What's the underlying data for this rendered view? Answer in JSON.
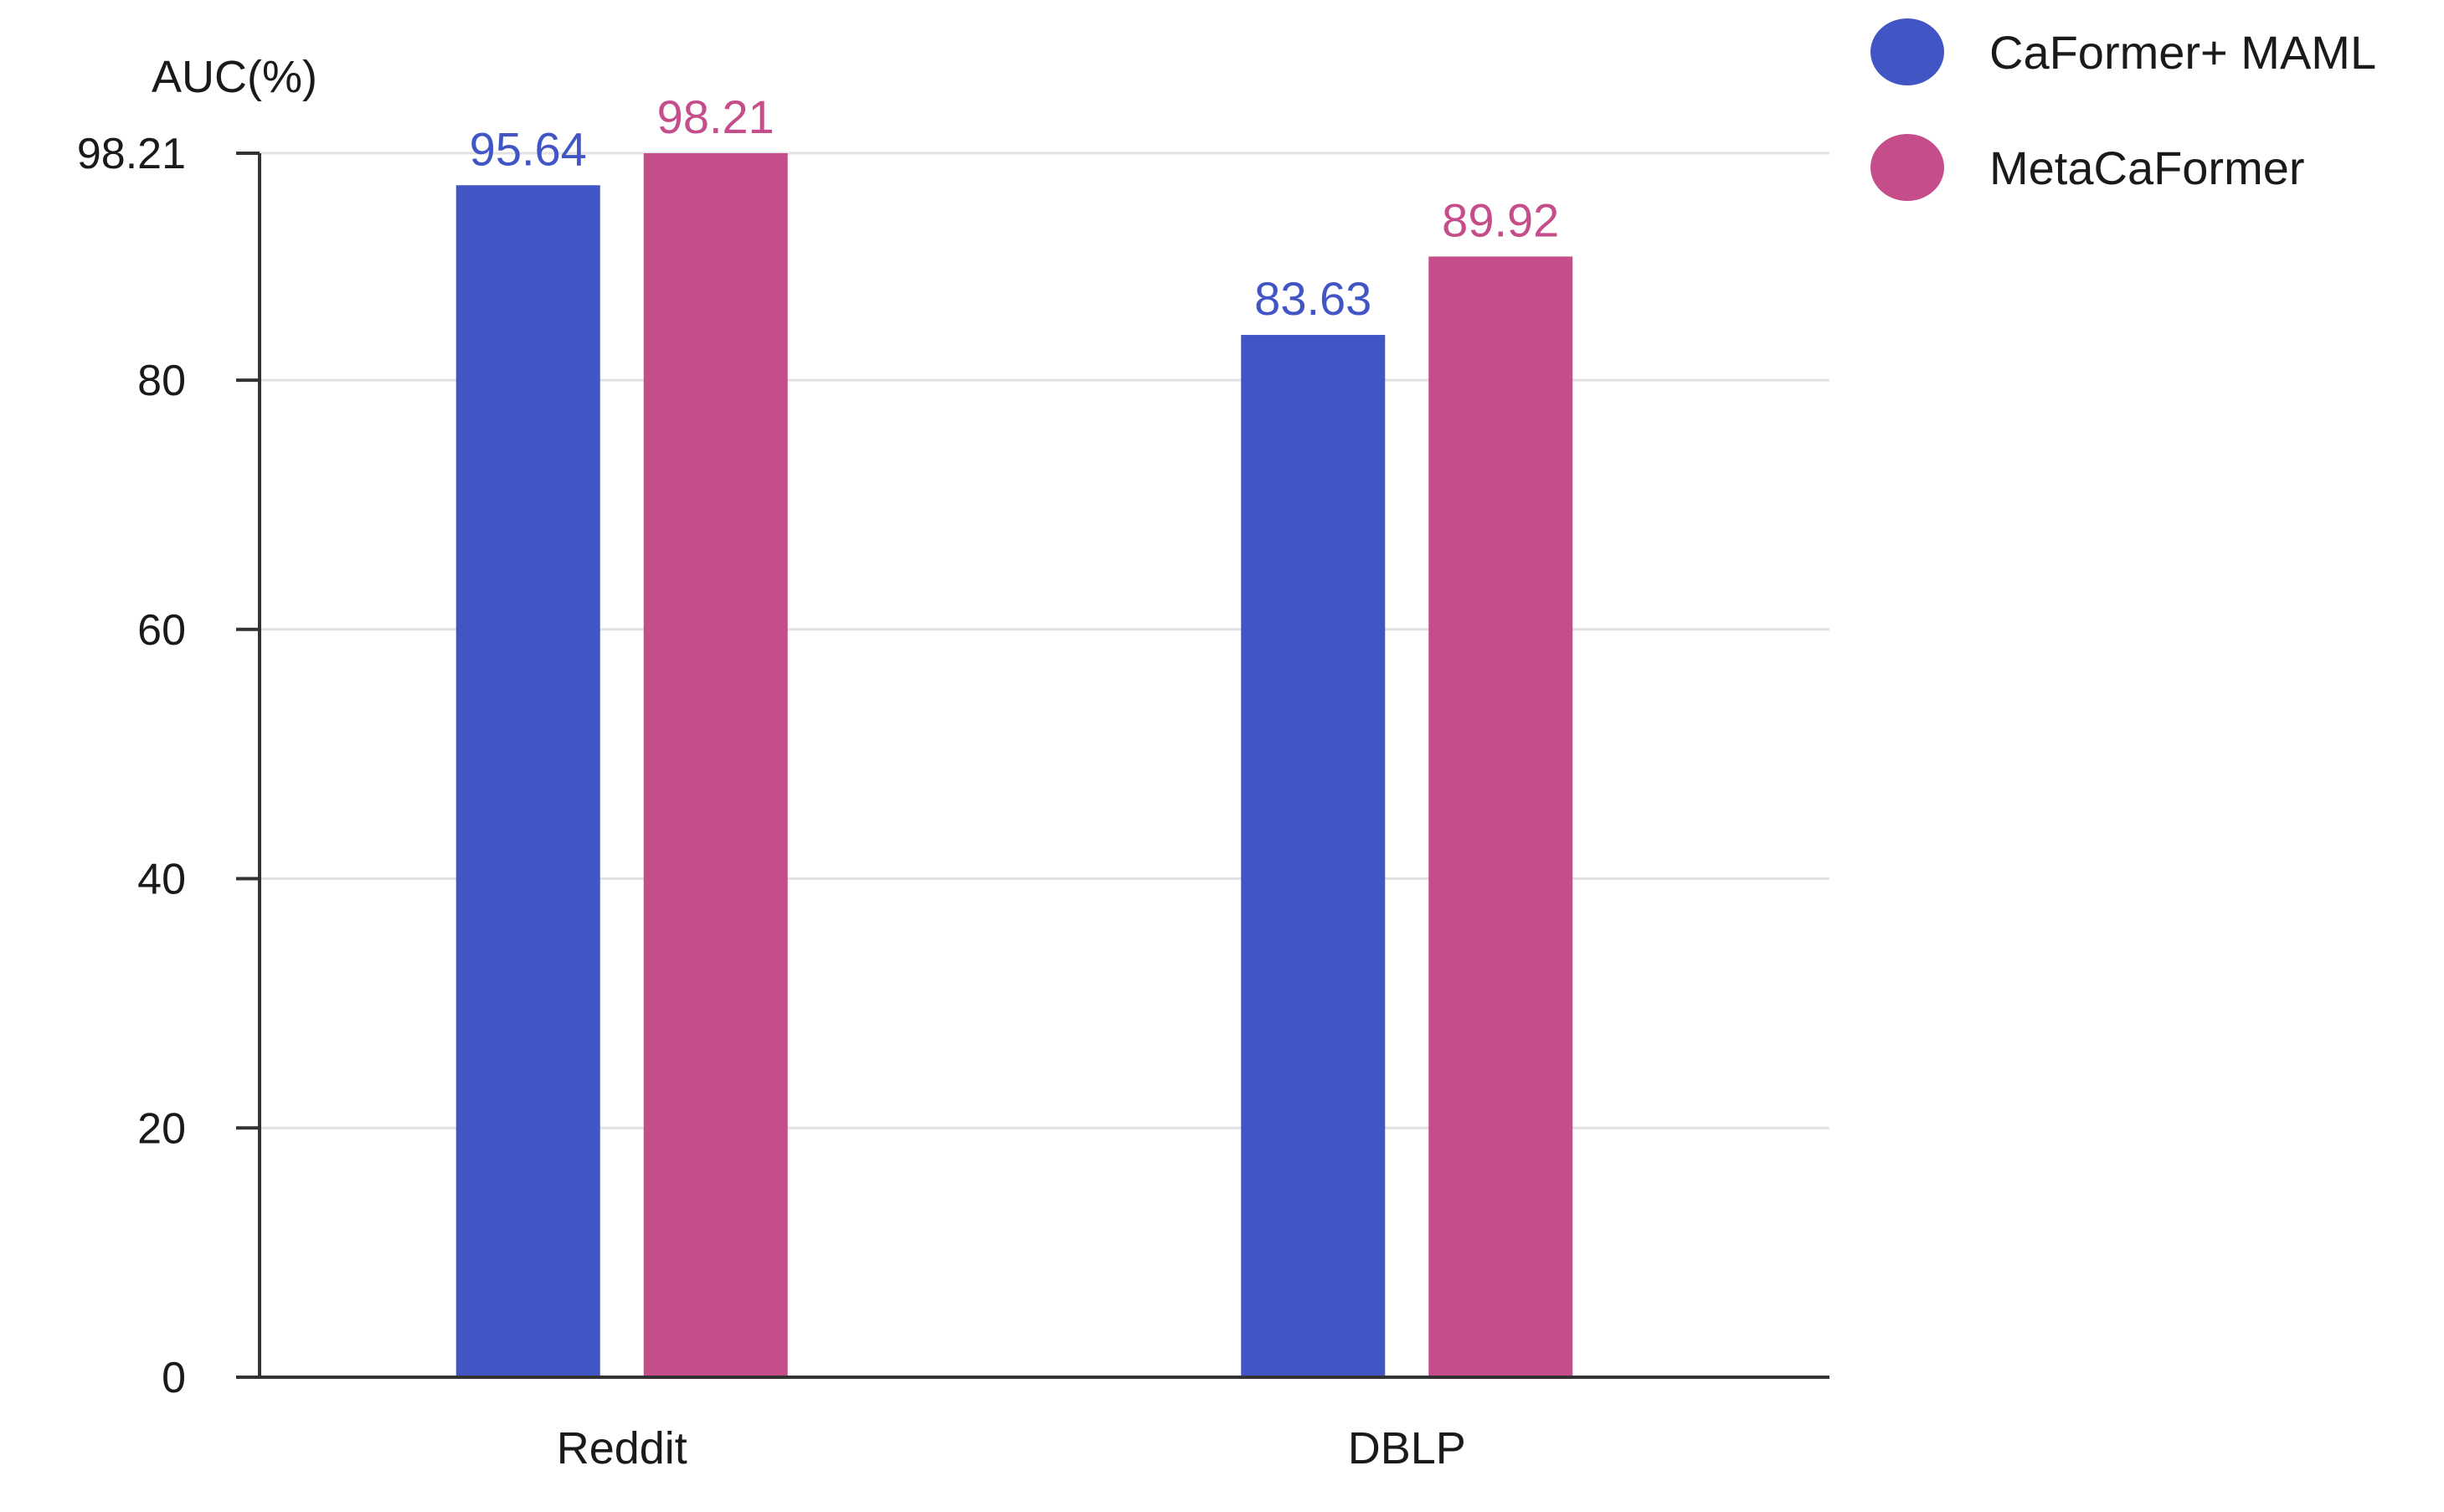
{
  "chart_data": {
    "type": "bar",
    "categories": [
      "Reddit",
      "DBLP"
    ],
    "series": [
      {
        "name": "CaFormer+ MAML",
        "values": [
          95.64,
          83.63
        ],
        "labels": [
          "95.64",
          "83.63"
        ],
        "color": "#4155c4"
      },
      {
        "name": "MetaCaFormer",
        "values": [
          98.21,
          89.92
        ],
        "labels": [
          "98.21",
          "89.92"
        ],
        "color": "#c54e8a"
      }
    ],
    "title": "",
    "xlabel": "",
    "ylabel": "AUC(%)",
    "ylim": [
      0,
      98.21
    ],
    "yticks": [
      0,
      20,
      40,
      60,
      80,
      98.21
    ],
    "ytick_labels": [
      "0",
      "20",
      "40",
      "60",
      "80",
      "98.21"
    ],
    "grid": true,
    "legend_position": "top-right"
  }
}
